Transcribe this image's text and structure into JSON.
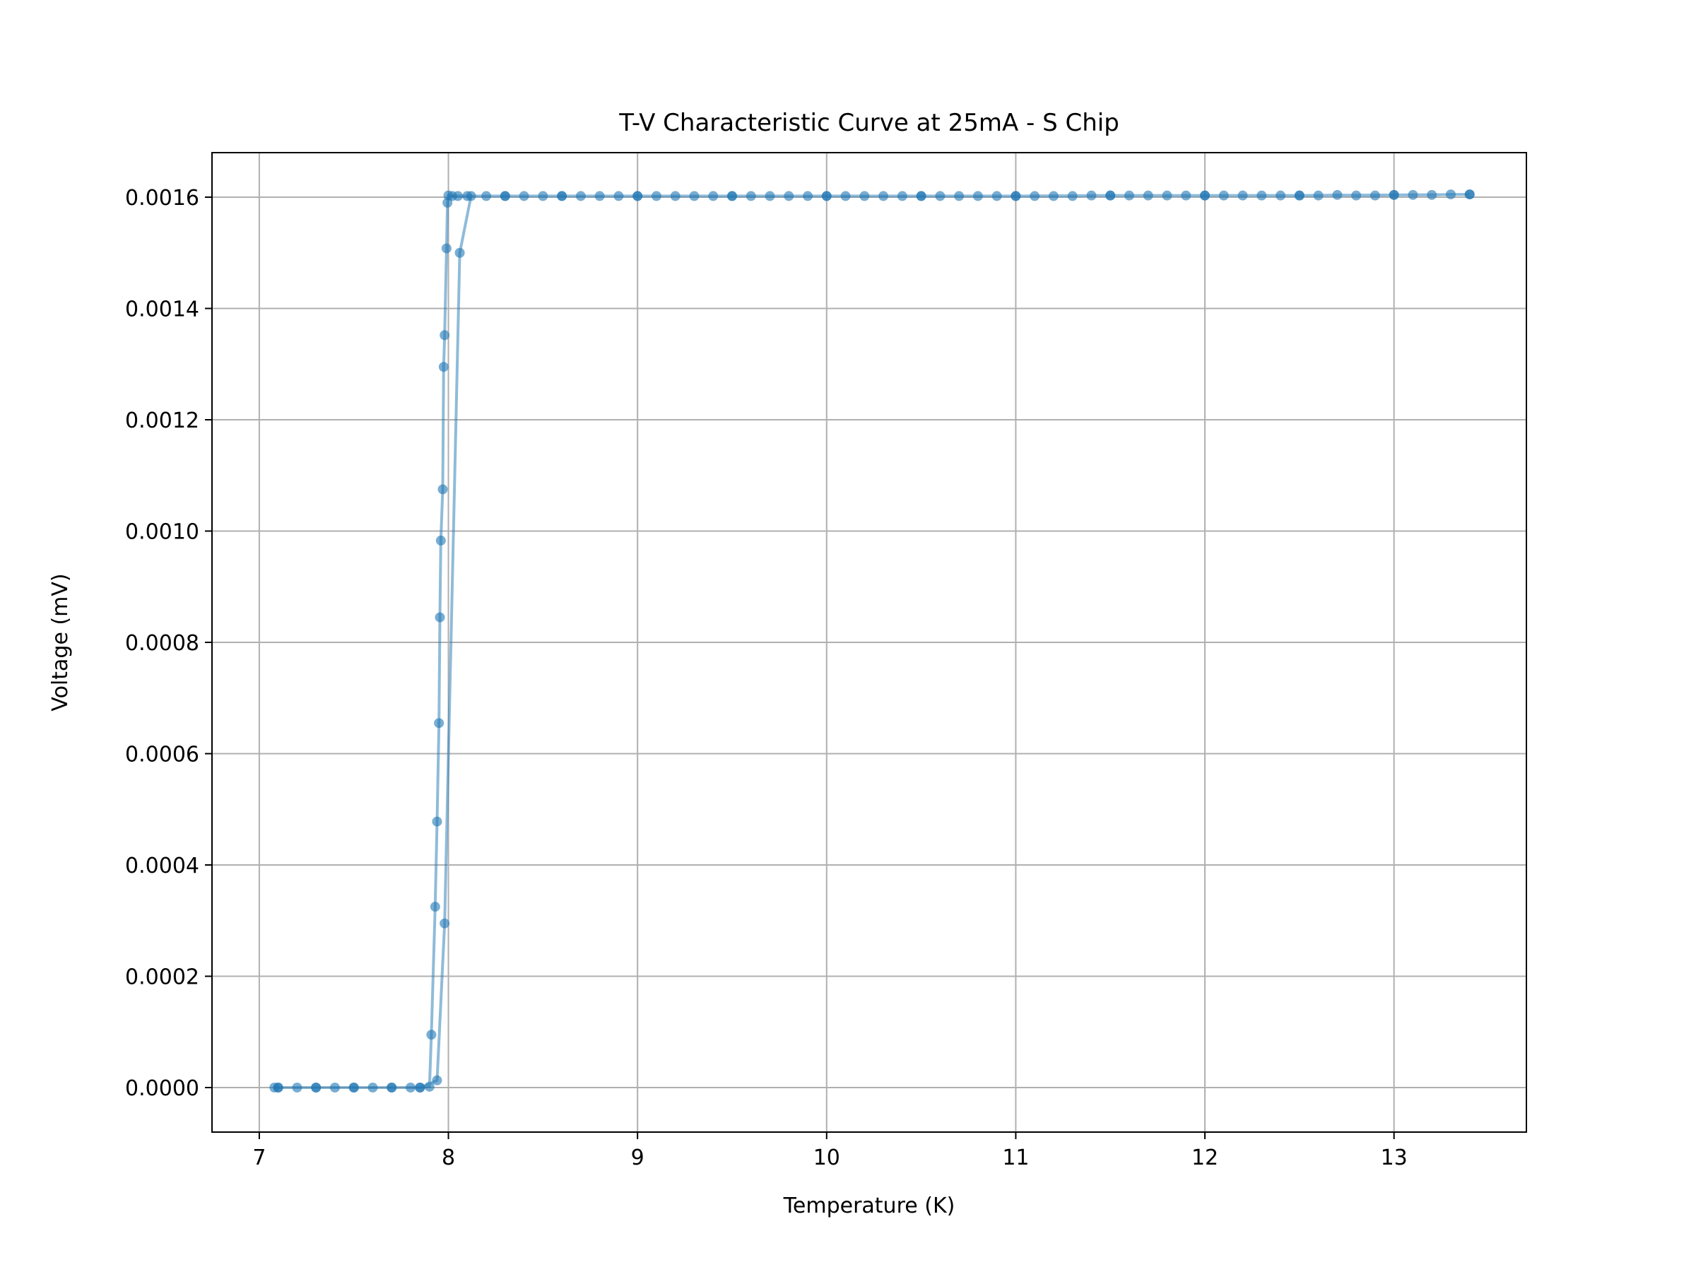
{
  "chart_data": {
    "type": "line",
    "title": "T-V Characteristic Curve at 25mA - S Chip",
    "xlabel": "Temperature (K)",
    "ylabel": "Voltage (mV)",
    "xlim": [
      6.75,
      13.7
    ],
    "ylim": [
      -8e-05,
      0.00168
    ],
    "x_ticks": [
      7,
      8,
      9,
      10,
      11,
      12,
      13
    ],
    "x_tick_labels": [
      "7",
      "8",
      "9",
      "10",
      "11",
      "12",
      "13"
    ],
    "y_ticks": [
      0,
      0.0002,
      0.0004,
      0.0006,
      0.0008,
      0.001,
      0.0012,
      0.0014,
      0.0016
    ],
    "y_tick_labels": [
      "0.0000",
      "0.0002",
      "0.0004",
      "0.0006",
      "0.0008",
      "0.0010",
      "0.0012",
      "0.0014",
      "0.0016"
    ],
    "grid": true,
    "legend": null,
    "color": "#1f77b4",
    "series": [
      {
        "values": [
          [
            13.4,
            0.001605
          ],
          [
            13.3,
            0.001605
          ],
          [
            13.2,
            0.001604
          ],
          [
            13.1,
            0.001604
          ],
          [
            13.0,
            0.001604
          ],
          [
            12.9,
            0.001603
          ],
          [
            12.8,
            0.001603
          ],
          [
            12.7,
            0.001604
          ],
          [
            12.6,
            0.001603
          ],
          [
            12.5,
            0.001603
          ],
          [
            12.4,
            0.001603
          ],
          [
            12.3,
            0.001603
          ],
          [
            12.2,
            0.001603
          ],
          [
            12.1,
            0.001603
          ],
          [
            12.0,
            0.001603
          ],
          [
            11.9,
            0.001603
          ],
          [
            11.8,
            0.001603
          ],
          [
            11.7,
            0.001603
          ],
          [
            11.6,
            0.001603
          ],
          [
            11.5,
            0.001603
          ],
          [
            11.4,
            0.001603
          ],
          [
            11.3,
            0.001602
          ],
          [
            11.2,
            0.001602
          ],
          [
            11.1,
            0.001602
          ],
          [
            11.0,
            0.001602
          ],
          [
            10.9,
            0.001602
          ],
          [
            10.8,
            0.001602
          ],
          [
            10.7,
            0.001602
          ],
          [
            10.6,
            0.001602
          ],
          [
            10.5,
            0.001602
          ],
          [
            10.4,
            0.001602
          ],
          [
            10.3,
            0.001602
          ],
          [
            10.2,
            0.001602
          ],
          [
            10.1,
            0.001602
          ],
          [
            10.0,
            0.001602
          ],
          [
            9.9,
            0.001602
          ],
          [
            9.8,
            0.001602
          ],
          [
            9.7,
            0.001602
          ],
          [
            9.6,
            0.001602
          ],
          [
            9.5,
            0.001602
          ],
          [
            9.4,
            0.001602
          ],
          [
            9.3,
            0.001602
          ],
          [
            9.2,
            0.001602
          ],
          [
            9.1,
            0.001602
          ],
          [
            9.0,
            0.001602
          ],
          [
            8.9,
            0.001602
          ],
          [
            8.8,
            0.001602
          ],
          [
            8.7,
            0.001602
          ],
          [
            8.6,
            0.001602
          ],
          [
            8.5,
            0.001602
          ],
          [
            8.4,
            0.001602
          ],
          [
            8.3,
            0.001602
          ],
          [
            8.2,
            0.001602
          ],
          [
            8.1,
            0.001602
          ],
          [
            8.05,
            0.001602
          ],
          [
            8.02,
            0.001602
          ],
          [
            8.0,
            0.001603
          ],
          [
            7.995,
            0.00159
          ],
          [
            7.99,
            0.001508
          ],
          [
            7.98,
            0.001352
          ],
          [
            7.975,
            0.001295
          ],
          [
            7.97,
            0.001075
          ],
          [
            7.96,
            0.000983
          ],
          [
            7.955,
            0.000845
          ],
          [
            7.95,
            0.000655
          ],
          [
            7.94,
            0.000478
          ],
          [
            7.93,
            0.000325
          ],
          [
            7.91,
            9.5e-05
          ],
          [
            7.9,
            1.5e-06
          ],
          [
            7.85,
            0.0
          ],
          [
            7.8,
            0.0
          ],
          [
            7.7,
            0.0
          ],
          [
            7.6,
            0.0
          ],
          [
            7.5,
            0.0
          ],
          [
            7.4,
            0.0
          ],
          [
            7.3,
            0.0
          ],
          [
            7.2,
            0.0
          ],
          [
            7.1,
            0.0
          ],
          [
            7.08,
            0.0
          ],
          [
            7.1,
            0.0
          ],
          [
            7.3,
            0.0
          ],
          [
            7.5,
            0.0
          ],
          [
            7.7,
            0.0
          ],
          [
            7.85,
            0.0
          ],
          [
            7.94,
            1.3e-05
          ],
          [
            7.98,
            0.000295
          ],
          [
            8.06,
            0.0015
          ],
          [
            8.12,
            0.001602
          ],
          [
            8.3,
            0.001602
          ],
          [
            8.6,
            0.001602
          ],
          [
            9.0,
            0.001602
          ],
          [
            9.5,
            0.001602
          ],
          [
            10.0,
            0.001602
          ],
          [
            10.5,
            0.001602
          ],
          [
            11.0,
            0.001602
          ],
          [
            11.5,
            0.001603
          ],
          [
            12.0,
            0.001603
          ],
          [
            12.5,
            0.001603
          ],
          [
            13.0,
            0.001604
          ],
          [
            13.4,
            0.001605
          ]
        ]
      }
    ]
  }
}
